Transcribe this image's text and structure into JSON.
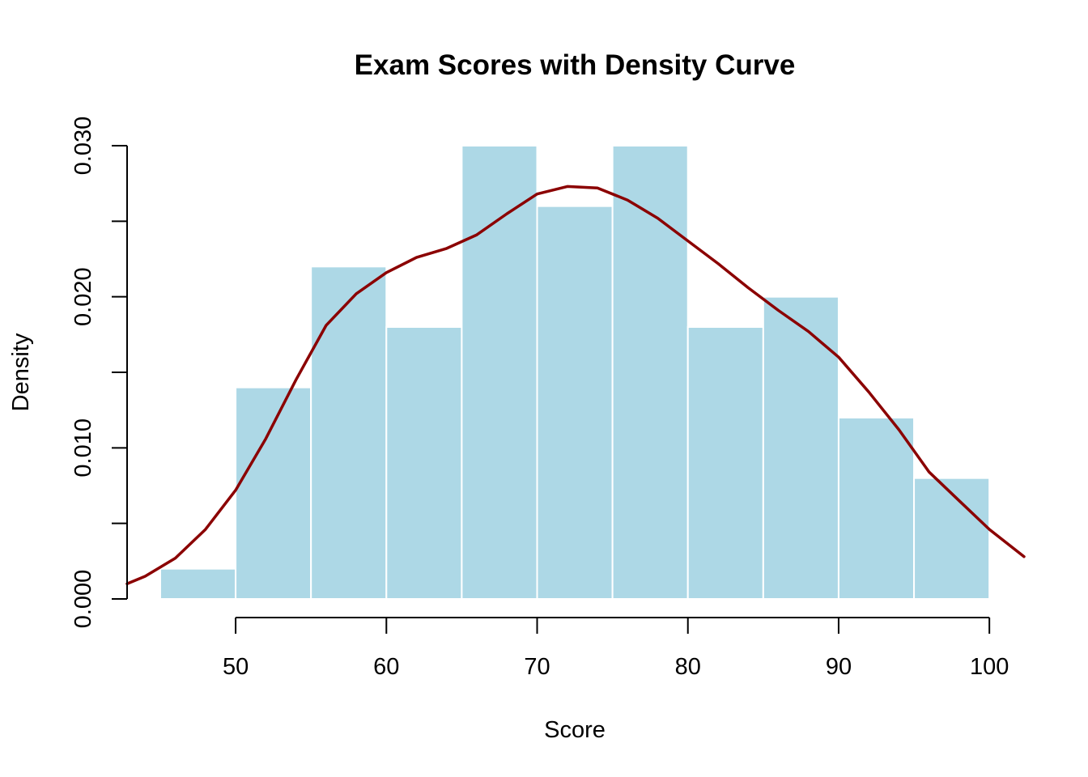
{
  "colors": {
    "bar_fill": "#add8e6",
    "bar_border": "#ffffff",
    "density_line": "#8b0000",
    "axis": "#000000"
  },
  "chart_data": {
    "type": "bar",
    "title": "Exam Scores with Density Curve",
    "xlabel": "Score",
    "ylabel": "Density",
    "xlim": [
      42.8,
      102.3
    ],
    "ylim": [
      0,
      0.03
    ],
    "x_ticks": [
      50,
      60,
      70,
      80,
      90,
      100
    ],
    "x_tick_labels": [
      "50",
      "60",
      "70",
      "80",
      "90",
      "100"
    ],
    "y_ticks": [
      0,
      0.005,
      0.01,
      0.015,
      0.02,
      0.025,
      0.03
    ],
    "y_tick_labels": [
      "0.000",
      "",
      "0.010",
      "",
      "0.020",
      "",
      "0.030"
    ],
    "grid": false,
    "histogram": {
      "bin_edges": [
        45,
        50,
        55,
        60,
        65,
        70,
        75,
        80,
        85,
        90,
        95,
        100
      ],
      "density": [
        0.002,
        0.014,
        0.022,
        0.018,
        0.03,
        0.026,
        0.03,
        0.018,
        0.02,
        0.012,
        0.008
      ]
    },
    "density_curve": {
      "x": [
        42.8,
        44,
        46,
        48,
        50,
        52,
        54,
        56,
        58,
        60,
        62,
        64,
        66,
        68,
        70,
        72,
        74,
        76,
        78,
        80,
        82,
        84,
        86,
        88,
        90,
        92,
        94,
        96,
        98,
        100,
        102.3
      ],
      "y": [
        0.001,
        0.0015,
        0.0027,
        0.0046,
        0.0072,
        0.0106,
        0.0145,
        0.0181,
        0.0202,
        0.0216,
        0.0226,
        0.0232,
        0.0241,
        0.0255,
        0.0268,
        0.0273,
        0.0272,
        0.0264,
        0.0252,
        0.0237,
        0.0222,
        0.0206,
        0.0191,
        0.0177,
        0.016,
        0.0137,
        0.0112,
        0.0084,
        0.0065,
        0.0046,
        0.0028
      ]
    }
  }
}
